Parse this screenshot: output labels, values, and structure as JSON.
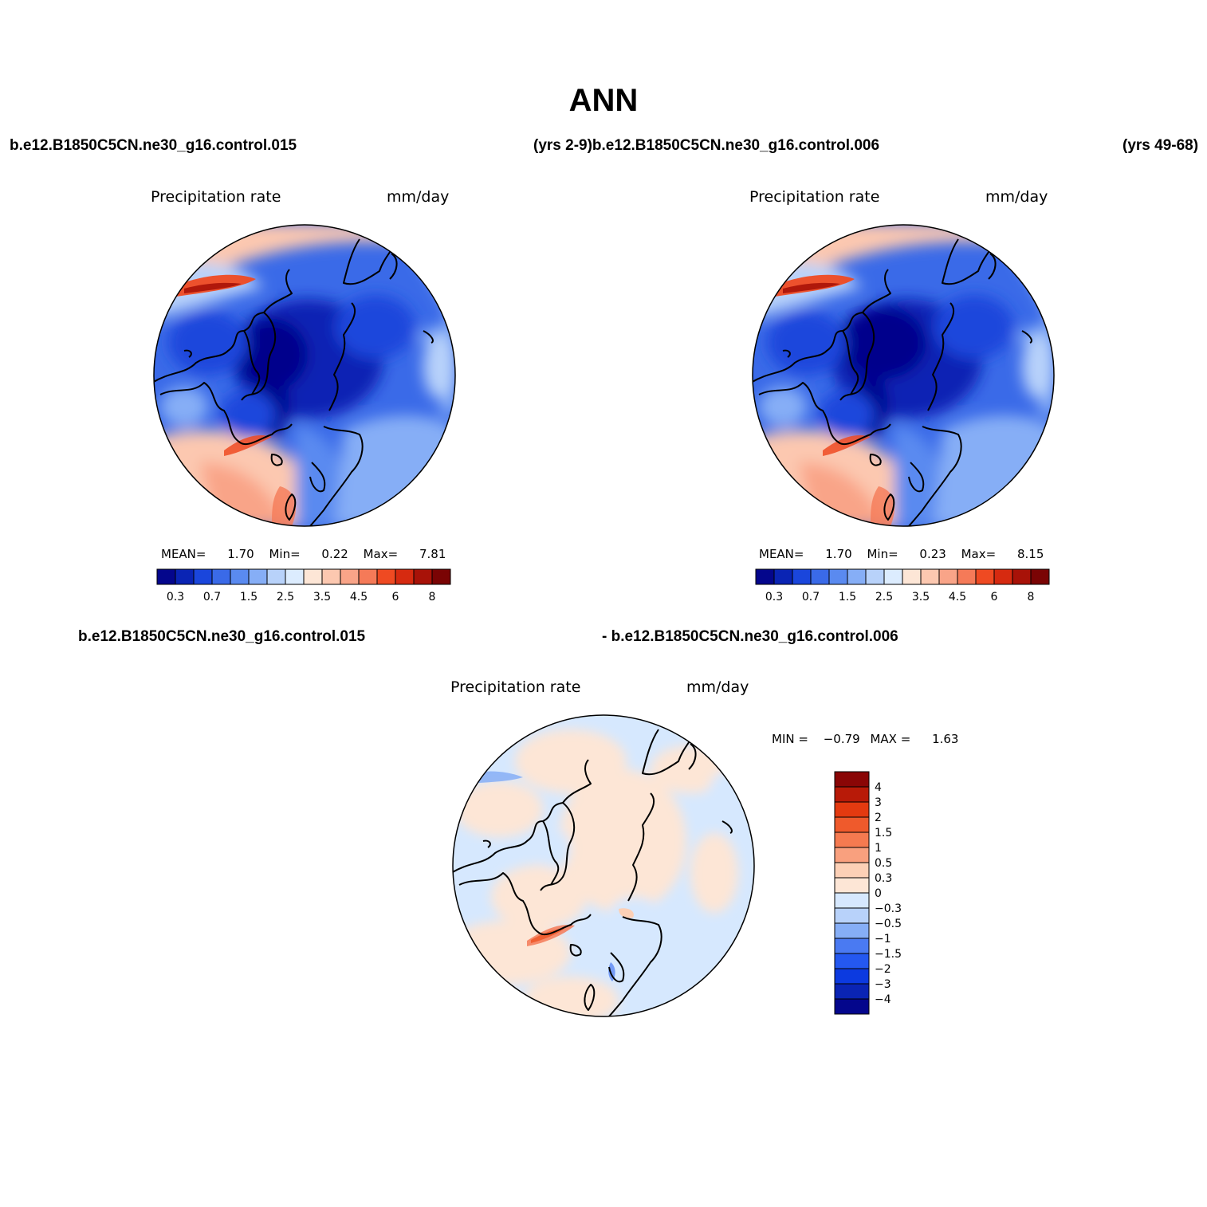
{
  "title": "ANN",
  "header_labels": {
    "top_left_case": "b.e12.B1850C5CN.ne30_g16.control.015",
    "top_middle": "(yrs 2-9)b.e12.B1850C5CN.ne30_g16.control.006",
    "top_right_years": "(yrs 49-68)",
    "bottom_left_case": "b.e12.B1850C5CN.ne30_g16.control.015",
    "bottom_middle_case": "- b.e12.B1850C5CN.ne30_g16.control.006"
  },
  "panels": [
    {
      "id": "control-015",
      "variable": "Precipitation  rate",
      "units": "mm/day",
      "stats": {
        "mean_label": "MEAN=",
        "mean": "1.70",
        "min_label": "Min=",
        "min": "0.22",
        "max_label": "Max=",
        "max": "7.81"
      }
    },
    {
      "id": "control-006",
      "variable": "Precipitation  rate",
      "units": "mm/day",
      "stats": {
        "mean_label": "MEAN=",
        "mean": "1.70",
        "min_label": "Min=",
        "min": "0.23",
        "max_label": "Max=",
        "max": "8.15"
      }
    },
    {
      "id": "difference",
      "variable": "Precipitation  rate",
      "units": "mm/day",
      "stats": {
        "min_label": "MIN =",
        "min": "−0.79",
        "max_label": "MAX =",
        "max": "1.63"
      }
    }
  ],
  "colorbar_main": {
    "colors": [
      "#04068c",
      "#0a24b4",
      "#1a46dc",
      "#3a6ae8",
      "#5a8af0",
      "#86aef6",
      "#b8d2fa",
      "#dcecfe",
      "#fde6d6",
      "#fcc8b0",
      "#f9a488",
      "#f57a58",
      "#ef4a22",
      "#d62a10",
      "#a81208",
      "#7a0404"
    ],
    "tick_labels": [
      "0.3",
      "0.7",
      "1.5",
      "2.5",
      "3.5",
      "4.5",
      "6",
      "8"
    ]
  },
  "colorbar_diff": {
    "colors": [
      "#04068c",
      "#0a24b4",
      "#0c3ae0",
      "#2458f0",
      "#4a7af2",
      "#86aef6",
      "#b8d2fa",
      "#d6e8fe",
      "#fde6d6",
      "#fcd0b6",
      "#f9a07e",
      "#f57a50",
      "#ef5a2c",
      "#e43a10",
      "#b81a08",
      "#8a0606"
    ],
    "tick_labels": [
      "4",
      "3",
      "2",
      "1.5",
      "1",
      "0.5",
      "0.3",
      "0",
      "−0.3",
      "−0.5",
      "−1",
      "−1.5",
      "−2",
      "−3",
      "−4"
    ]
  },
  "colors": {
    "coast": "#000000",
    "background": "#ffffff"
  }
}
